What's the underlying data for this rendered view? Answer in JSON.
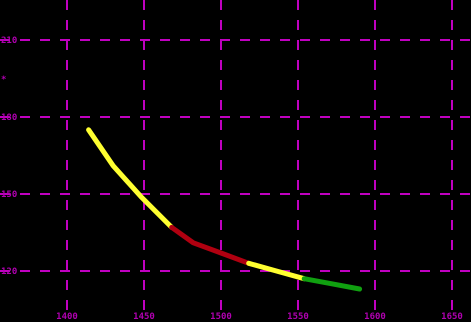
{
  "chart_data": {
    "type": "line",
    "title": "",
    "xlabel": "",
    "ylabel": "",
    "x_tick_labels": [
      "1400",
      "1450",
      "1500",
      "1550",
      "1600",
      "1650"
    ],
    "y_tick_labels": [
      "210",
      "180",
      "150",
      "120"
    ],
    "y_extra_label": "*",
    "xlim": [
      1400,
      1650
    ],
    "ylim": [
      120,
      210
    ],
    "grid": true,
    "colors": {
      "background": "#000000",
      "grid": "#c000c0",
      "tick_label": "#b000b0",
      "yellow": "#ffff30",
      "red": "#b00010",
      "green": "#10a010"
    },
    "series": [
      {
        "segments": [
          {
            "color": "yellow",
            "points": [
              [
                1414,
                175
              ],
              [
                1430,
                161
              ],
              [
                1448,
                149
              ],
              [
                1468,
                137
              ]
            ]
          },
          {
            "color": "red",
            "points": [
              [
                1468,
                137
              ],
              [
                1482,
                131
              ],
              [
                1500,
                127
              ],
              [
                1518,
                123
              ]
            ]
          },
          {
            "color": "yellow",
            "points": [
              [
                1518,
                123
              ],
              [
                1536,
                120
              ],
              [
                1554,
                117
              ]
            ]
          },
          {
            "color": "green",
            "points": [
              [
                1554,
                117
              ],
              [
                1572,
                115
              ],
              [
                1590,
                113
              ]
            ]
          }
        ]
      }
    ]
  }
}
